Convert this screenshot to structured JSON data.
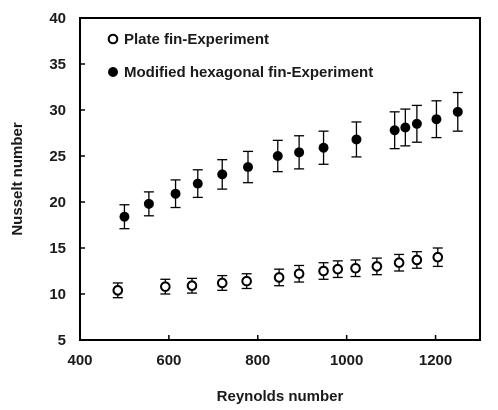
{
  "chart_data": {
    "type": "scatter",
    "xlabel": "Reynolds number",
    "ylabel": "Nusselt number",
    "xlim": [
      400,
      1300
    ],
    "ylim": [
      5,
      40
    ],
    "xticks": [
      "400",
      "600",
      "800",
      "1000",
      "1200"
    ],
    "yticks": [
      "5",
      "10",
      "15",
      "20",
      "25",
      "30",
      "35",
      "40"
    ],
    "grid": false,
    "legend_position": "top-left",
    "series": [
      {
        "name": "Plate fin-Experiment",
        "marker": "open-circle",
        "color": "#000000",
        "points": [
          {
            "x": 485,
            "y": 10.4,
            "err": 0.8
          },
          {
            "x": 592,
            "y": 10.8,
            "err": 0.8
          },
          {
            "x": 652,
            "y": 10.9,
            "err": 0.8
          },
          {
            "x": 720,
            "y": 11.2,
            "err": 0.8
          },
          {
            "x": 775,
            "y": 11.4,
            "err": 0.8
          },
          {
            "x": 848,
            "y": 11.8,
            "err": 0.9
          },
          {
            "x": 893,
            "y": 12.2,
            "err": 0.9
          },
          {
            "x": 948,
            "y": 12.5,
            "err": 0.9
          },
          {
            "x": 980,
            "y": 12.7,
            "err": 0.9
          },
          {
            "x": 1020,
            "y": 12.8,
            "err": 0.9
          },
          {
            "x": 1068,
            "y": 13.0,
            "err": 0.9
          },
          {
            "x": 1118,
            "y": 13.4,
            "err": 0.9
          },
          {
            "x": 1158,
            "y": 13.7,
            "err": 0.9
          },
          {
            "x": 1205,
            "y": 14.0,
            "err": 1.0
          }
        ]
      },
      {
        "name": "Modified hexagonal fin-Experiment",
        "marker": "filled-circle",
        "color": "#000000",
        "points": [
          {
            "x": 500,
            "y": 18.4,
            "err": 1.3
          },
          {
            "x": 555,
            "y": 19.8,
            "err": 1.3
          },
          {
            "x": 615,
            "y": 20.9,
            "err": 1.5
          },
          {
            "x": 665,
            "y": 22.0,
            "err": 1.5
          },
          {
            "x": 720,
            "y": 23.0,
            "err": 1.6
          },
          {
            "x": 778,
            "y": 23.8,
            "err": 1.7
          },
          {
            "x": 845,
            "y": 25.0,
            "err": 1.7
          },
          {
            "x": 893,
            "y": 25.4,
            "err": 1.8
          },
          {
            "x": 948,
            "y": 25.9,
            "err": 1.8
          },
          {
            "x": 1022,
            "y": 26.8,
            "err": 1.9
          },
          {
            "x": 1108,
            "y": 27.8,
            "err": 2.0
          },
          {
            "x": 1132,
            "y": 28.1,
            "err": 2.0
          },
          {
            "x": 1158,
            "y": 28.5,
            "err": 2.0
          },
          {
            "x": 1202,
            "y": 29.0,
            "err": 2.0
          },
          {
            "x": 1250,
            "y": 29.8,
            "err": 2.1
          }
        ]
      }
    ]
  }
}
